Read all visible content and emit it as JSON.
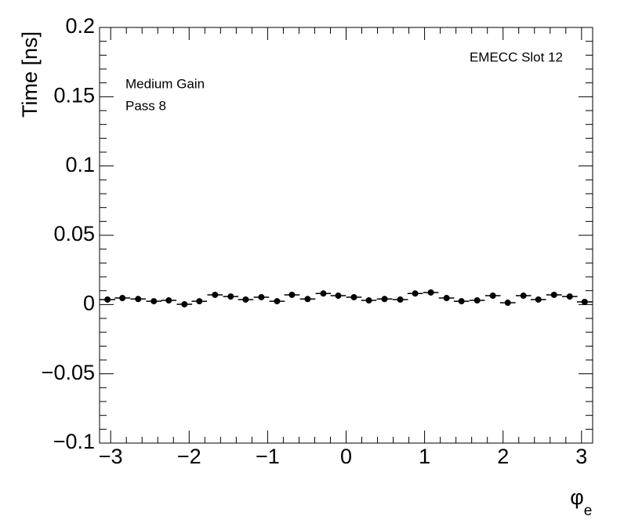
{
  "chart_data": {
    "type": "scatter",
    "ylabel": "Time [ns]",
    "xlabel": {
      "base": "φ",
      "sub": "e"
    },
    "annotations": [
      "EMECC Slot 12",
      "Medium Gain",
      "Pass 8"
    ],
    "xlim": [
      -3.1416,
      3.1416
    ],
    "ylim": [
      -0.1,
      0.2
    ],
    "xticks": [
      {
        "value": -3,
        "label": "−3"
      },
      {
        "value": -2,
        "label": "−2"
      },
      {
        "value": -1,
        "label": "−1"
      },
      0,
      1,
      2,
      3
    ],
    "yticks": [
      {
        "value": -0.1,
        "label": "−0.1"
      },
      {
        "value": -0.05,
        "label": "−0.05"
      },
      0,
      0.05,
      0.1,
      0.15,
      0.2
    ],
    "color": "#000000",
    "xerr": 0.098,
    "x": [
      -3.04,
      -2.85,
      -2.65,
      -2.45,
      -2.26,
      -2.06,
      -1.87,
      -1.67,
      -1.47,
      -1.28,
      -1.08,
      -0.88,
      -0.69,
      -0.49,
      -0.29,
      -0.1,
      0.1,
      0.29,
      0.49,
      0.69,
      0.88,
      1.08,
      1.28,
      1.47,
      1.67,
      1.87,
      2.06,
      2.26,
      2.45,
      2.65,
      2.85,
      3.04
    ],
    "values": [
      0.0036,
      0.0047,
      0.004,
      0.0024,
      0.003,
      0.0002,
      0.0024,
      0.007,
      0.0058,
      0.0036,
      0.0053,
      0.0024,
      0.007,
      0.004,
      0.008,
      0.0064,
      0.0053,
      0.003,
      0.004,
      0.0036,
      0.008,
      0.0087,
      0.0047,
      0.0024,
      0.003,
      0.0064,
      0.0013,
      0.0064,
      0.0036,
      0.007,
      0.0058,
      0.0019
    ]
  }
}
